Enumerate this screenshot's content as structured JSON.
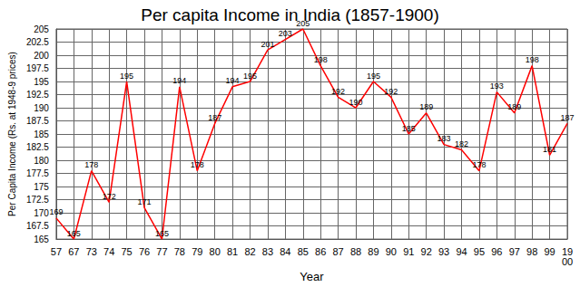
{
  "chart_data": {
    "type": "line",
    "title": "Per capita Income in India (1857-1900)",
    "x_label": "Year",
    "y_label": "Per Capita Income (Rs. at 1948-9 prices)",
    "categories": [
      "57",
      "67",
      "73",
      "74",
      "75",
      "76",
      "77",
      "78",
      "79",
      "80",
      "81",
      "82",
      "83",
      "84",
      "85",
      "86",
      "87",
      "88",
      "89",
      "90",
      "91",
      "92",
      "93",
      "94",
      "95",
      "96",
      "97",
      "98",
      "99",
      "1900"
    ],
    "values": [
      169,
      165,
      178,
      172,
      195,
      171,
      165,
      194,
      178,
      187,
      194,
      195,
      201,
      203,
      205,
      198,
      192,
      190,
      195,
      192,
      185,
      189,
      183,
      182,
      178,
      193,
      189,
      198,
      181,
      187
    ],
    "color": "#ff0000",
    "ylim": [
      165,
      205
    ],
    "yticks": [
      165,
      167.5,
      170,
      172.5,
      175,
      177.5,
      180,
      182.5,
      185,
      187.5,
      190,
      192.5,
      195,
      197.5,
      200,
      202.5,
      205
    ],
    "grid": true,
    "data_labels": true
  }
}
